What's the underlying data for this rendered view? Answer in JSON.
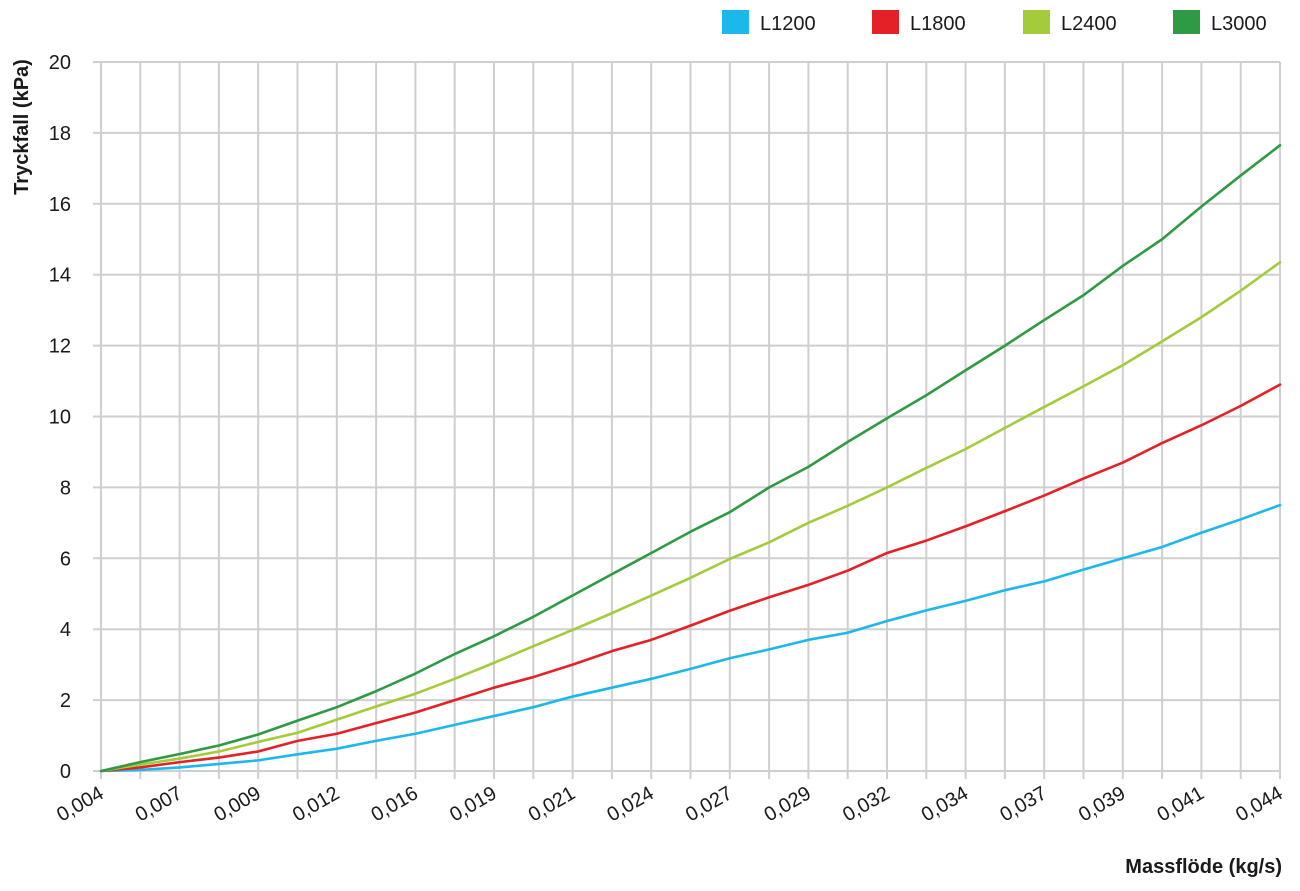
{
  "chart_data": {
    "type": "line",
    "xlabel": "Massflöde (kg/s)",
    "ylabel": "Tryckfall (kPa)",
    "xlim": [
      0.004,
      0.044
    ],
    "ylim": [
      0,
      20
    ],
    "x_tick_labels": [
      "0,004",
      "0,007",
      "0,009",
      "0,012",
      "0,016",
      "0,019",
      "0,021",
      "0,024",
      "0,027",
      "0,029",
      "0,032",
      "0,034",
      "0,037",
      "0,039",
      "0,041",
      "0,044"
    ],
    "y_ticks": [
      0,
      2,
      4,
      6,
      8,
      10,
      12,
      14,
      16,
      18,
      20
    ],
    "y_tick_labels": [
      "0",
      "2",
      "4",
      "6",
      "8",
      "10",
      "12",
      "14",
      "16",
      "18",
      "20"
    ],
    "grid": true,
    "legend_position": "top-right",
    "x": [
      0.004,
      0.00533,
      0.00667,
      0.008,
      0.00933,
      0.01067,
      0.012,
      0.01333,
      0.01467,
      0.016,
      0.01733,
      0.01867,
      0.02,
      0.02133,
      0.02267,
      0.024,
      0.02533,
      0.02667,
      0.028,
      0.02933,
      0.03067,
      0.032,
      0.03333,
      0.03467,
      0.036,
      0.03733,
      0.03867,
      0.04,
      0.04133,
      0.04267,
      0.044
    ],
    "series": [
      {
        "name": "L1200",
        "color": "#1DB8EB",
        "values": [
          0,
          0.03,
          0.1,
          0.2,
          0.3,
          0.47,
          0.63,
          0.85,
          1.05,
          1.3,
          1.55,
          1.8,
          2.1,
          2.35,
          2.6,
          2.88,
          3.18,
          3.43,
          3.7,
          3.9,
          4.23,
          4.53,
          4.8,
          5.1,
          5.35,
          5.68,
          6.0,
          6.32,
          6.72,
          7.1,
          7.5
        ]
      },
      {
        "name": "L1800",
        "color": "#E42127",
        "values": [
          0,
          0.1,
          0.25,
          0.38,
          0.55,
          0.85,
          1.05,
          1.35,
          1.65,
          2.0,
          2.35,
          2.65,
          3.0,
          3.38,
          3.7,
          4.1,
          4.52,
          4.9,
          5.25,
          5.65,
          6.15,
          6.5,
          6.9,
          7.33,
          7.77,
          8.25,
          8.7,
          9.25,
          9.75,
          10.3,
          10.9
        ]
      },
      {
        "name": "L2400",
        "color": "#A4CB3A",
        "values": [
          0,
          0.18,
          0.35,
          0.55,
          0.82,
          1.08,
          1.45,
          1.82,
          2.18,
          2.6,
          3.05,
          3.52,
          3.98,
          4.45,
          4.95,
          5.45,
          5.98,
          6.45,
          7.0,
          7.48,
          8.0,
          8.55,
          9.08,
          9.68,
          10.27,
          10.85,
          11.45,
          12.12,
          12.8,
          13.55,
          14.35
        ]
      },
      {
        "name": "L3000",
        "color": "#2E9A44",
        "values": [
          0,
          0.25,
          0.48,
          0.72,
          1.03,
          1.42,
          1.8,
          2.25,
          2.75,
          3.3,
          3.8,
          4.35,
          4.95,
          5.55,
          6.15,
          6.75,
          7.3,
          8.0,
          8.58,
          9.28,
          9.95,
          10.6,
          11.3,
          12.0,
          12.72,
          13.42,
          14.25,
          15.0,
          15.92,
          16.8,
          17.65
        ]
      }
    ]
  }
}
